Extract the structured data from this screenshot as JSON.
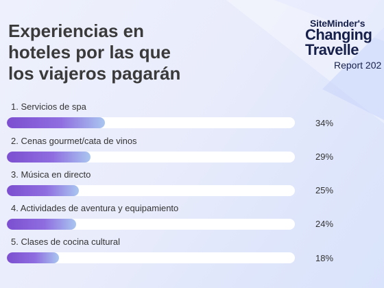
{
  "title": {
    "line1": "Experiencias en",
    "line2": "hoteles por las que",
    "line3": "los viajeros pagarán"
  },
  "brand": {
    "line1": "SiteMinder's",
    "line2": "Changing",
    "line3": "Travelle",
    "line4": "Report 202"
  },
  "colors": {
    "bar_start": "#7c4fd0",
    "bar_end": "#a9c6f0",
    "track": "#ffffff",
    "text": "#333333"
  },
  "chart_data": {
    "type": "bar",
    "orientation": "horizontal",
    "categories": [
      "1. Servicios de spa",
      "2. Cenas gourmet/cata de vinos",
      "3. Música en directo",
      "4. Actividades de aventura y equipamiento",
      "5. Clases de cocina cultural"
    ],
    "values": [
      34,
      29,
      25,
      24,
      18
    ],
    "value_labels": [
      "34%",
      "29%",
      "25%",
      "24%",
      "18%"
    ],
    "unit": "%",
    "xlim": [
      0,
      100
    ],
    "grid": false,
    "legend": "none"
  }
}
